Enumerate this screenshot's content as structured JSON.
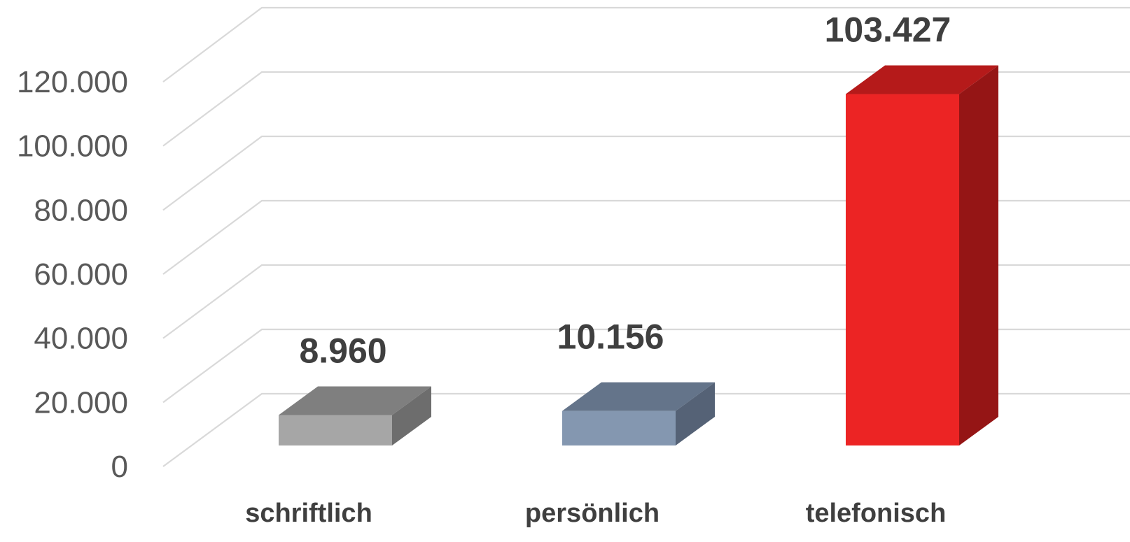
{
  "chart_data": {
    "type": "bar",
    "style": "3d-column",
    "categories": [
      "schriftlich",
      "persönlich",
      "telefonisch"
    ],
    "values": [
      8960,
      10156,
      103427
    ],
    "value_labels": [
      "8.960",
      "10.156",
      "103.427"
    ],
    "y_ticks": [
      0,
      20000,
      40000,
      60000,
      80000,
      100000,
      120000
    ],
    "y_tick_labels": [
      "0",
      "20.000",
      "40.000",
      "60.000",
      "80.000",
      "100.000",
      "120.000"
    ],
    "ylim": [
      0,
      120000
    ],
    "grid": true,
    "legend": "none",
    "colors": {
      "schriftlich": {
        "front": "#a6a6a6",
        "top": "#7f7f7f",
        "side": "#6d6d6d"
      },
      "persönlich": {
        "front": "#8497b0",
        "top": "#64748a",
        "side": "#556276"
      },
      "telefonisch": {
        "front": "#ec2424",
        "top": "#b51a1a",
        "side": "#951515"
      }
    }
  }
}
